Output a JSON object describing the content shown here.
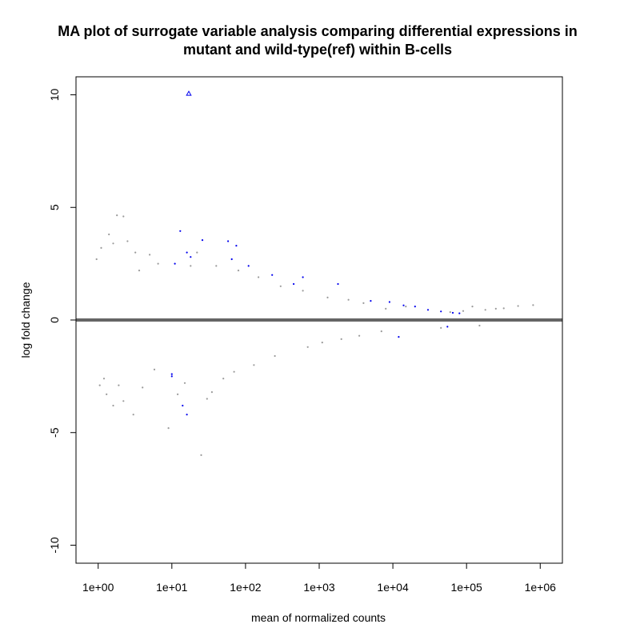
{
  "chart_data": {
    "type": "scatter",
    "title_lines": [
      "MA plot of surrogate variable analysis comparing differential expressions in",
      "mutant and wild-type(ref) within B-cells"
    ],
    "xlabel": "mean of normalized counts",
    "ylabel": "log fold change",
    "x_scale": "log10",
    "xlim": [
      0.5,
      2000000
    ],
    "ylim": [
      -10.8,
      10.8
    ],
    "x_ticks": [
      {
        "value": 1,
        "label": "1e+00"
      },
      {
        "value": 10,
        "label": "1e+01"
      },
      {
        "value": 100,
        "label": "1e+02"
      },
      {
        "value": 1000,
        "label": "1e+03"
      },
      {
        "value": 10000,
        "label": "1e+04"
      },
      {
        "value": 100000,
        "label": "1e+05"
      },
      {
        "value": 1000000,
        "label": "1e+06"
      }
    ],
    "y_ticks": [
      {
        "value": 10,
        "label": "10"
      },
      {
        "value": 5,
        "label": "5"
      },
      {
        "value": 0,
        "label": "0"
      },
      {
        "value": -5,
        "label": "-5"
      },
      {
        "value": -10,
        "label": "-10"
      }
    ],
    "reference_line": {
      "y": 0,
      "color": "#666666"
    },
    "grid": false,
    "legend": "none",
    "colors": {
      "not_significant": "#9a9a9a",
      "significant": "#0000ee",
      "frame": "#000000"
    },
    "series": [
      {
        "key": "not_significant",
        "color": "#9a9a9a",
        "points": [
          [
            1.8,
            4.65
          ],
          [
            2.2,
            4.6
          ],
          [
            1.4,
            3.8
          ],
          [
            1.6,
            3.4
          ],
          [
            1.1,
            3.2
          ],
          [
            2.5,
            3.5
          ],
          [
            3.2,
            3.0
          ],
          [
            3.0,
            -4.2
          ],
          [
            2.2,
            -3.6
          ],
          [
            1.6,
            -3.8
          ],
          [
            1.3,
            -3.3
          ],
          [
            9,
            -4.8
          ],
          [
            25,
            -6.0
          ],
          [
            12,
            -3.3
          ],
          [
            30,
            -3.5
          ],
          [
            1.2,
            -2.6
          ],
          [
            1.9,
            -2.9
          ],
          [
            4.0,
            -3.0
          ],
          [
            5.0,
            2.9
          ],
          [
            6.5,
            2.5
          ],
          [
            0.95,
            2.7
          ],
          [
            1.05,
            -2.9
          ],
          [
            40,
            2.4
          ],
          [
            35,
            -3.2
          ],
          [
            3.6,
            2.2
          ],
          [
            5.8,
            -2.2
          ],
          [
            120000,
            0.6
          ],
          [
            180000,
            0.45
          ],
          [
            250000,
            0.5
          ],
          [
            320000,
            0.52
          ],
          [
            500000,
            0.62
          ],
          [
            800000,
            0.66
          ],
          [
            90000,
            0.4
          ],
          [
            150000,
            -0.25
          ],
          [
            60000,
            0.35
          ],
          [
            45000,
            -0.35
          ],
          [
            15000,
            0.6
          ],
          [
            8000,
            0.5
          ],
          [
            7000,
            -0.5
          ],
          [
            4000,
            0.75
          ],
          [
            3500,
            -0.7
          ],
          [
            2500,
            0.9
          ],
          [
            2000,
            -0.85
          ],
          [
            1300,
            1.0
          ],
          [
            1100,
            -1.0
          ],
          [
            700,
            -1.2
          ],
          [
            600,
            1.3
          ],
          [
            300,
            1.5
          ],
          [
            250,
            -1.6
          ],
          [
            150,
            1.9
          ],
          [
            130,
            -2.0
          ],
          [
            80,
            2.2
          ],
          [
            70,
            -2.3
          ],
          [
            18,
            2.4
          ],
          [
            15,
            -2.8
          ],
          [
            22,
            3.0
          ],
          [
            50,
            -2.6
          ]
        ]
      },
      {
        "key": "significant",
        "color": "#0000ee",
        "points": [
          [
            17,
            10.05
          ],
          [
            13,
            3.95
          ],
          [
            26,
            3.55
          ],
          [
            58,
            3.5
          ],
          [
            75,
            3.3
          ],
          [
            16,
            3.0
          ],
          [
            65,
            2.7
          ],
          [
            11,
            2.5
          ],
          [
            18,
            2.8
          ],
          [
            10,
            -2.4
          ],
          [
            10,
            -2.5
          ],
          [
            16,
            -4.2
          ],
          [
            14,
            -3.8
          ],
          [
            110,
            2.4
          ],
          [
            230,
            2.0
          ],
          [
            600,
            1.9
          ],
          [
            450,
            1.6
          ],
          [
            1800,
            1.6
          ],
          [
            5000,
            0.85
          ],
          [
            9000,
            0.8
          ],
          [
            14000,
            0.65
          ],
          [
            20000,
            0.6
          ],
          [
            12000,
            -0.75
          ],
          [
            30000,
            0.45
          ],
          [
            45000,
            0.38
          ],
          [
            55000,
            -0.3
          ],
          [
            65000,
            0.32
          ],
          [
            80000,
            0.3
          ]
        ]
      }
    ]
  }
}
